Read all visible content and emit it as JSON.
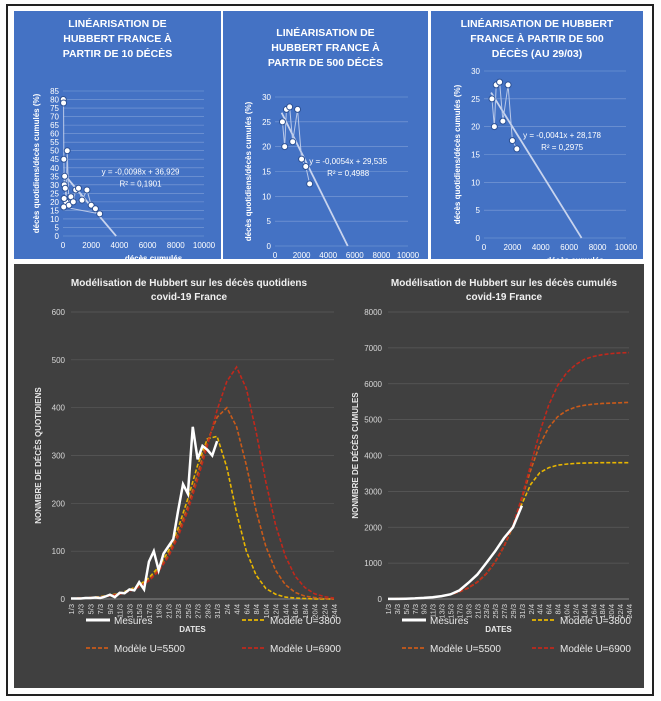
{
  "chart_data": [
    {
      "type": "scatter",
      "title": "LINÉARISATION DE HUBBERT FRANCE À PARTIR DE 10 DÉCÈS",
      "title_lines": [
        "LINÉARISATION DE",
        "HUBBERT FRANCE À",
        "PARTIR DE 10 DÉCÈS"
      ],
      "xlabel": "décès cumulés",
      "ylabel": "décès quotidiens/décès cumulés (%)",
      "xlim": [
        0,
        10000
      ],
      "ylim": [
        0,
        85
      ],
      "xticks": [
        0,
        2000,
        4000,
        6000,
        8000,
        10000
      ],
      "yticks": [
        0,
        5,
        10,
        15,
        20,
        25,
        30,
        35,
        40,
        45,
        50,
        55,
        60,
        65,
        70,
        75,
        80,
        85
      ],
      "points": [
        [
          20,
          80
        ],
        [
          40,
          78
        ],
        [
          60,
          45
        ],
        [
          90,
          30
        ],
        [
          120,
          35
        ],
        [
          160,
          28
        ],
        [
          220,
          20
        ],
        [
          300,
          50
        ],
        [
          420,
          18
        ],
        [
          560,
          23
        ],
        [
          730,
          20
        ],
        [
          900,
          27
        ],
        [
          1100,
          28
        ],
        [
          1350,
          21
        ],
        [
          1700,
          27
        ],
        [
          2000,
          18
        ],
        [
          2300,
          16
        ],
        [
          2600,
          13
        ],
        [
          50,
          17
        ],
        [
          80,
          22
        ]
      ],
      "trendline": {
        "slope": -0.0098,
        "intercept": 36.929,
        "x_range": [
          0,
          3770
        ]
      },
      "equation": "y = -0,0098x + 36,929",
      "r2": "R² = 0,1901",
      "grid": true
    },
    {
      "type": "scatter",
      "title": "LINÉARISATION DE HUBBERT FRANCE À PARTIR DE 500 DÉCÈS",
      "title_lines": [
        "LINÉARISATION DE",
        "HUBBERT FRANCE À",
        "PARTIR DE 500 DÉCÈS"
      ],
      "xlabel": "décès cumulés",
      "ylabel": "décès quotidiens/décès cumulés (%)",
      "xlim": [
        0,
        10000
      ],
      "ylim": [
        0,
        30
      ],
      "xticks": [
        0,
        2000,
        4000,
        6000,
        8000,
        10000
      ],
      "yticks": [
        0,
        5,
        10,
        15,
        20,
        25,
        30
      ],
      "points": [
        [
          560,
          25
        ],
        [
          730,
          20
        ],
        [
          860,
          27.5
        ],
        [
          1100,
          28
        ],
        [
          1331,
          21
        ],
        [
          1696,
          27.5
        ],
        [
          2000,
          17.5
        ],
        [
          2314,
          16
        ],
        [
          2606,
          12.5
        ]
      ],
      "trendline": {
        "slope": -0.0054,
        "intercept": 29.535,
        "x_range": [
          500,
          5470
        ]
      },
      "equation": "y = -0,0054x + 29,535",
      "r2": "R² = 0,4988",
      "grid": true
    },
    {
      "type": "scatter",
      "title": "LINÉARISATION DE HUBBERT FRANCE À PARTIR DE 500 DÉCÈS (AU 29/03)",
      "title_lines": [
        "LINÉARISATION DE HUBBERT",
        "FRANCE À PARTIR DE 500",
        "DÉCÈS (AU 29/03)"
      ],
      "xlabel": "décès cumulés",
      "ylabel": "décès quotidiens/décès cumulés (%)",
      "xlim": [
        0,
        10000
      ],
      "ylim": [
        0,
        30
      ],
      "xticks": [
        0,
        2000,
        4000,
        6000,
        8000,
        10000
      ],
      "yticks": [
        0,
        5,
        10,
        15,
        20,
        25,
        30
      ],
      "points": [
        [
          560,
          25
        ],
        [
          730,
          20
        ],
        [
          860,
          27.5
        ],
        [
          1100,
          28
        ],
        [
          1331,
          21
        ],
        [
          1696,
          27.5
        ],
        [
          2000,
          17.5
        ],
        [
          2314,
          16
        ]
      ],
      "trendline": {
        "slope": -0.0041,
        "intercept": 28.178,
        "x_range": [
          500,
          6870
        ]
      },
      "equation": "y = -0,0041x + 28,178",
      "r2": "R² = 0,2975",
      "grid": true
    },
    {
      "type": "line",
      "title": "Modélisation de Hubbert sur les décès quotidiens covid-19 France",
      "title_lines": [
        "Modélisation de Hubbert sur les décès quotidiens",
        "covid-19 France"
      ],
      "xlabel": "DATES",
      "ylabel": "NONMBRE DE DÉCÈS QUOTIDIENS",
      "ylim": [
        0,
        600
      ],
      "yticks": [
        0,
        100,
        200,
        300,
        400,
        500,
        600
      ],
      "categories": [
        "1/3",
        "3/3",
        "5/3",
        "7/3",
        "9/3",
        "11/3",
        "13/3",
        "15/3",
        "17/3",
        "19/3",
        "21/3",
        "23/3",
        "25/3",
        "27/3",
        "29/3",
        "31/3",
        "2/4",
        "4/4",
        "6/4",
        "8/4",
        "10/4",
        "12/4",
        "14/4",
        "16/4",
        "18/4",
        "20/4",
        "22/4",
        "24/4"
      ],
      "series": [
        {
          "name": "Mesures",
          "color": "#ffffff",
          "style": "solid",
          "x": [
            0,
            1,
            2,
            3,
            4,
            5,
            6,
            7,
            8,
            9,
            10,
            11,
            12,
            13,
            14,
            15,
            16,
            17,
            18,
            19,
            20,
            21,
            22,
            23,
            24,
            25,
            26,
            27,
            28,
            29,
            30
          ],
          "y": [
            1,
            1,
            1,
            2,
            2,
            3,
            2,
            5,
            9,
            4,
            13,
            12,
            20,
            18,
            35,
            20,
            78,
            100,
            60,
            95,
            110,
            125,
            185,
            240,
            220,
            360,
            292,
            320,
            312,
            300,
            330
          ]
        },
        {
          "name": "Modèle U=3800",
          "color": "#e8b600",
          "style": "dash",
          "x": [
            0,
            2,
            4,
            6,
            8,
            10,
            12,
            14,
            16,
            18,
            20,
            22,
            24,
            26,
            28,
            30,
            32,
            34,
            36,
            38,
            40,
            42,
            44,
            46,
            48,
            50,
            52,
            54
          ],
          "y": [
            1,
            2,
            3,
            5,
            8,
            12,
            19,
            29,
            44,
            67,
            100,
            148,
            210,
            280,
            335,
            340,
            275,
            180,
            100,
            50,
            22,
            10,
            4,
            2,
            1,
            0,
            0,
            0
          ]
        },
        {
          "name": "Modèle U=5500",
          "color": "#c95a1a",
          "style": "dash",
          "x": [
            0,
            2,
            4,
            6,
            8,
            10,
            12,
            14,
            16,
            18,
            20,
            22,
            24,
            26,
            28,
            30,
            32,
            34,
            36,
            38,
            40,
            42,
            44,
            46,
            48,
            50,
            52,
            54
          ],
          "y": [
            1,
            2,
            3,
            4,
            7,
            11,
            17,
            26,
            40,
            61,
            92,
            138,
            195,
            262,
            330,
            380,
            400,
            360,
            280,
            185,
            110,
            60,
            30,
            14,
            6,
            3,
            1,
            0
          ]
        },
        {
          "name": "Modèle U=6900",
          "color": "#c0281c",
          "style": "dash",
          "x": [
            0,
            2,
            4,
            6,
            8,
            10,
            12,
            14,
            16,
            18,
            20,
            22,
            24,
            26,
            28,
            30,
            32,
            34,
            36,
            38,
            40,
            42,
            44,
            46,
            48,
            50,
            52,
            54
          ],
          "y": [
            1,
            2,
            3,
            4,
            7,
            10,
            16,
            25,
            38,
            58,
            88,
            130,
            185,
            250,
            320,
            395,
            455,
            485,
            440,
            350,
            245,
            155,
            90,
            48,
            24,
            11,
            5,
            2
          ]
        }
      ]
    },
    {
      "type": "line",
      "title": "Modélisation de Hubbert sur les décès cumulés covid-19 France",
      "title_lines": [
        "Modélisation de Hubbert sur les décès cumulés",
        "covid-19 France"
      ],
      "xlabel": "DATES",
      "ylabel": "NONMBRE DE DÉCÈS CUMULES",
      "ylim": [
        0,
        8000
      ],
      "yticks": [
        0,
        1000,
        2000,
        3000,
        4000,
        5000,
        6000,
        7000,
        8000
      ],
      "categories": [
        "1/3",
        "3/3",
        "5/3",
        "7/3",
        "9/3",
        "11/3",
        "13/3",
        "15/3",
        "17/3",
        "19/3",
        "21/3",
        "23/3",
        "25/3",
        "27/3",
        "29/3",
        "31/3",
        "2/4",
        "4/4",
        "6/4",
        "8/4",
        "10/4",
        "12/4",
        "14/4",
        "16/4",
        "18/4",
        "20/4",
        "22/4",
        "24/4"
      ],
      "series": [
        {
          "name": "Mesures",
          "color": "#ffffff",
          "style": "solid",
          "x": [
            0,
            2,
            4,
            6,
            8,
            10,
            12,
            14,
            16,
            18,
            20,
            22,
            24,
            26,
            28,
            30
          ],
          "y": [
            2,
            4,
            8,
            16,
            30,
            50,
            80,
            130,
            240,
            450,
            680,
            1000,
            1330,
            1700,
            2000,
            2600
          ]
        },
        {
          "name": "Modèle U=3800",
          "color": "#e8b600",
          "style": "dash",
          "x": [
            0,
            2,
            4,
            6,
            8,
            10,
            12,
            14,
            16,
            18,
            20,
            22,
            24,
            26,
            28,
            30,
            32,
            34,
            36,
            38,
            40,
            42,
            44,
            46,
            48,
            50,
            52,
            54
          ],
          "y": [
            5,
            8,
            12,
            20,
            32,
            50,
            80,
            125,
            200,
            310,
            470,
            700,
            1030,
            1470,
            2020,
            2650,
            3200,
            3520,
            3660,
            3730,
            3760,
            3780,
            3790,
            3795,
            3800,
            3800,
            3800,
            3800
          ]
        },
        {
          "name": "Modèle U=5500",
          "color": "#c95a1a",
          "style": "dash",
          "x": [
            0,
            2,
            4,
            6,
            8,
            10,
            12,
            14,
            16,
            18,
            20,
            22,
            24,
            26,
            28,
            30,
            32,
            34,
            36,
            38,
            40,
            42,
            44,
            46,
            48,
            50,
            52,
            54
          ],
          "y": [
            5,
            8,
            12,
            20,
            32,
            50,
            80,
            125,
            200,
            310,
            470,
            700,
            1030,
            1470,
            2050,
            2800,
            3600,
            4300,
            4780,
            5080,
            5250,
            5350,
            5400,
            5430,
            5450,
            5460,
            5470,
            5480
          ]
        },
        {
          "name": "Modèle U=6900",
          "color": "#c0281c",
          "style": "dash",
          "x": [
            0,
            2,
            4,
            6,
            8,
            10,
            12,
            14,
            16,
            18,
            20,
            22,
            24,
            26,
            28,
            30,
            32,
            34,
            36,
            38,
            40,
            42,
            44,
            46,
            48,
            50,
            52,
            54
          ],
          "y": [
            5,
            8,
            12,
            20,
            32,
            50,
            80,
            125,
            200,
            310,
            470,
            700,
            1030,
            1470,
            2050,
            2850,
            3750,
            4650,
            5400,
            5950,
            6300,
            6530,
            6680,
            6760,
            6810,
            6840,
            6860,
            6870
          ]
        }
      ]
    }
  ],
  "legend": [
    {
      "name": "Mesures",
      "color": "#ffffff",
      "style": "solid"
    },
    {
      "name": "Modèle U=3800",
      "color": "#e8b600",
      "style": "dash"
    },
    {
      "name": "Modèle U=5500",
      "color": "#c95a1a",
      "style": "dash"
    },
    {
      "name": "Modèle U=6900",
      "color": "#c0281c",
      "style": "dash"
    }
  ]
}
